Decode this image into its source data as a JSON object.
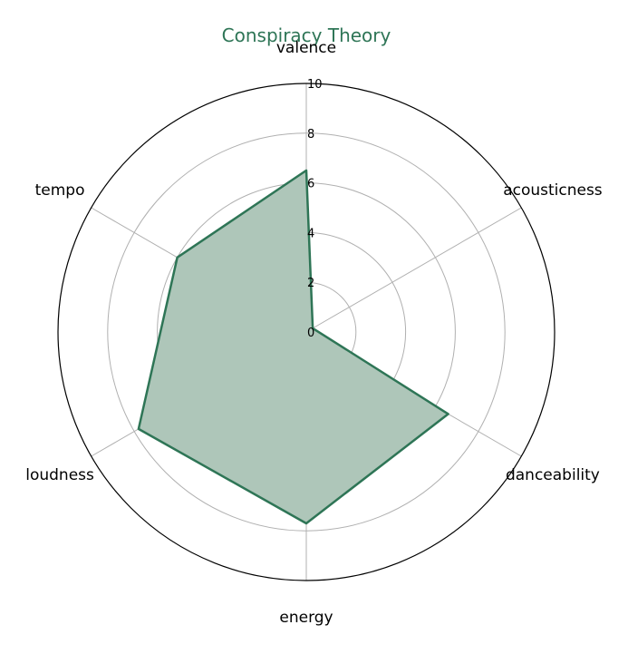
{
  "chart_data": {
    "type": "radar",
    "title": "Conspiracy Theory",
    "categories": [
      "valence",
      "acousticness",
      "danceability",
      "energy",
      "loudness",
      "tempo"
    ],
    "series": [
      {
        "values": [
          6.5,
          0.3,
          6.6,
          7.7,
          7.8,
          6.0
        ]
      }
    ],
    "rlim": [
      0,
      10
    ],
    "r_ticks": [
      "0",
      "2",
      "4",
      "6",
      "8",
      "10"
    ],
    "grid": true,
    "colors": {
      "title": "#2e7556",
      "line": "#2e7556",
      "fill": "#aec6b9",
      "grid": "#b0b0b0",
      "frame": "#000000"
    }
  }
}
